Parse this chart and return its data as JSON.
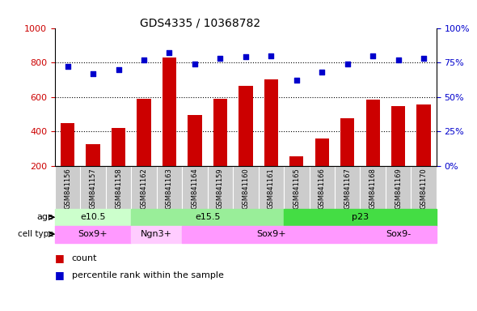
{
  "title": "GDS4335 / 10368782",
  "samples": [
    "GSM841156",
    "GSM841157",
    "GSM841158",
    "GSM841162",
    "GSM841163",
    "GSM841164",
    "GSM841159",
    "GSM841160",
    "GSM841161",
    "GSM841165",
    "GSM841166",
    "GSM841167",
    "GSM841168",
    "GSM841169",
    "GSM841170"
  ],
  "counts": [
    450,
    325,
    420,
    590,
    830,
    495,
    590,
    665,
    700,
    255,
    360,
    475,
    585,
    545,
    555
  ],
  "percentiles": [
    72,
    67,
    70,
    77,
    82,
    74,
    78,
    79,
    80,
    62,
    68,
    74,
    80,
    77,
    78
  ],
  "ylim_left": [
    200,
    1000
  ],
  "ylim_right": [
    0,
    100
  ],
  "yticks_left": [
    200,
    400,
    600,
    800,
    1000
  ],
  "yticks_right": [
    0,
    25,
    50,
    75,
    100
  ],
  "age_groups": [
    {
      "label": "e10.5",
      "start": 0,
      "end": 3,
      "color": "#ccffcc"
    },
    {
      "label": "e15.5",
      "start": 3,
      "end": 9,
      "color": "#99ee99"
    },
    {
      "label": "p23",
      "start": 9,
      "end": 15,
      "color": "#44dd44"
    }
  ],
  "cell_type_groups": [
    {
      "label": "Sox9+",
      "start": 0,
      "end": 3,
      "color": "#ff99ff"
    },
    {
      "label": "Ngn3+",
      "start": 3,
      "end": 5,
      "color": "#ffccff"
    },
    {
      "label": "Sox9+",
      "start": 5,
      "end": 12,
      "color": "#ff99ff"
    },
    {
      "label": "Sox9-",
      "start": 12,
      "end": 15,
      "color": "#ff99ff"
    }
  ],
  "bar_color": "#cc0000",
  "dot_color": "#0000cc",
  "tick_color_left": "#cc0000",
  "tick_color_right": "#0000cc",
  "xticklabel_bg": "#cccccc",
  "grid_dotted": [
    400,
    600,
    800
  ],
  "bar_bottom": 200,
  "bar_width": 0.55
}
